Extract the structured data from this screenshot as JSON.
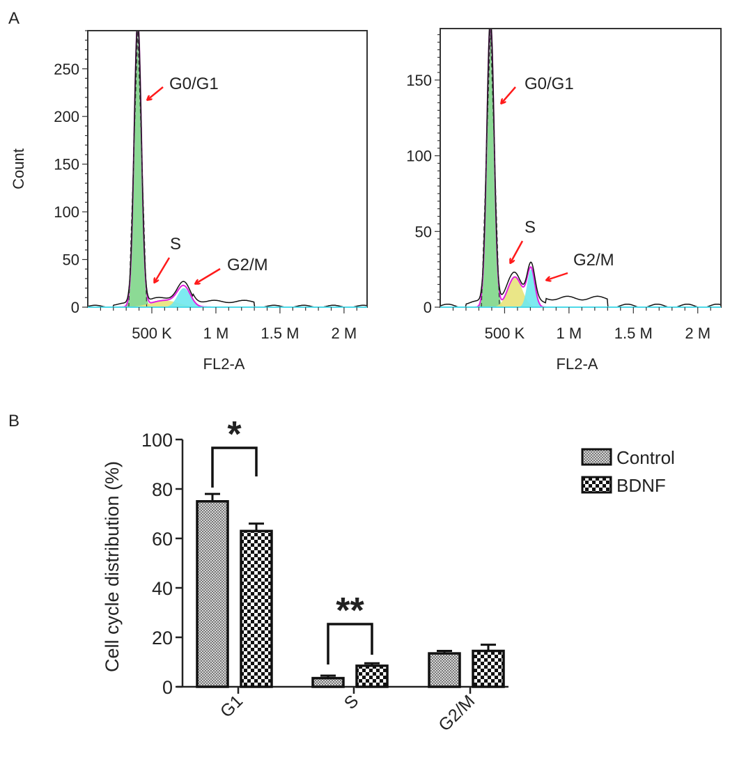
{
  "panel_labels": {
    "a": "A",
    "b": "B"
  },
  "chart_data": [
    {
      "type": "area",
      "panel": "A-left",
      "xlabel": "FL2-A",
      "ylabel": "Count",
      "xticks": [
        {
          "value": 500000,
          "label": "500 K"
        },
        {
          "value": 1000000,
          "label": "1 M"
        },
        {
          "value": 1500000,
          "label": "1.5 M"
        },
        {
          "value": 2000000,
          "label": "2 M"
        }
      ],
      "yticks": [
        0,
        50,
        100,
        150,
        200,
        250
      ],
      "xlim": [
        0,
        2180000
      ],
      "ylim": [
        0,
        290
      ],
      "components": [
        {
          "name": "G0/G1",
          "mean": 390000,
          "sd": 28000,
          "height": 300,
          "color": "#7fd68a"
        },
        {
          "name": "S",
          "mean": 600000,
          "sd": 110000,
          "height": 7,
          "color": "#e8e37a"
        },
        {
          "name": "G2/M",
          "mean": 750000,
          "sd": 50000,
          "height": 20,
          "color": "#6fe8ee"
        }
      ],
      "annotations": [
        "G0/G1",
        "S",
        "G2/M"
      ]
    },
    {
      "type": "area",
      "panel": "A-right",
      "xlabel": "FL2-A",
      "ylabel": "",
      "xticks": [
        {
          "value": 500000,
          "label": "500 K"
        },
        {
          "value": 1000000,
          "label": "1 M"
        },
        {
          "value": 1500000,
          "label": "1.5 M"
        },
        {
          "value": 2000000,
          "label": "2 M"
        }
      ],
      "yticks": [
        0,
        50,
        100,
        150
      ],
      "xlim": [
        0,
        2180000
      ],
      "ylim": [
        0,
        184
      ],
      "components": [
        {
          "name": "G0/G1",
          "mean": 390000,
          "sd": 28000,
          "height": 190,
          "color": "#7fd68a"
        },
        {
          "name": "S",
          "mean": 580000,
          "sd": 55000,
          "height": 20,
          "color": "#e8e37a"
        },
        {
          "name": "G2/M",
          "mean": 705000,
          "sd": 30000,
          "height": 25,
          "color": "#6fe8ee"
        }
      ],
      "annotations": [
        "G0/G1",
        "S",
        "G2/M"
      ]
    },
    {
      "type": "bar",
      "panel": "B",
      "categories": [
        "G1",
        "S",
        "G2/M"
      ],
      "ylabel": "Cell cycle distribution (%)",
      "ylim": [
        0,
        100
      ],
      "yticks": [
        0,
        20,
        40,
        60,
        80,
        100
      ],
      "legend": "top-right",
      "series": [
        {
          "name": "Control",
          "values": [
            75,
            3.5,
            13.5
          ],
          "errors": [
            3,
            1,
            1
          ]
        },
        {
          "name": "BDNF",
          "values": [
            63,
            8.5,
            14.5
          ],
          "errors": [
            3,
            1,
            2.5
          ]
        }
      ],
      "significance": [
        {
          "category": "G1",
          "label": "*"
        },
        {
          "category": "S",
          "label": "**"
        }
      ]
    }
  ]
}
